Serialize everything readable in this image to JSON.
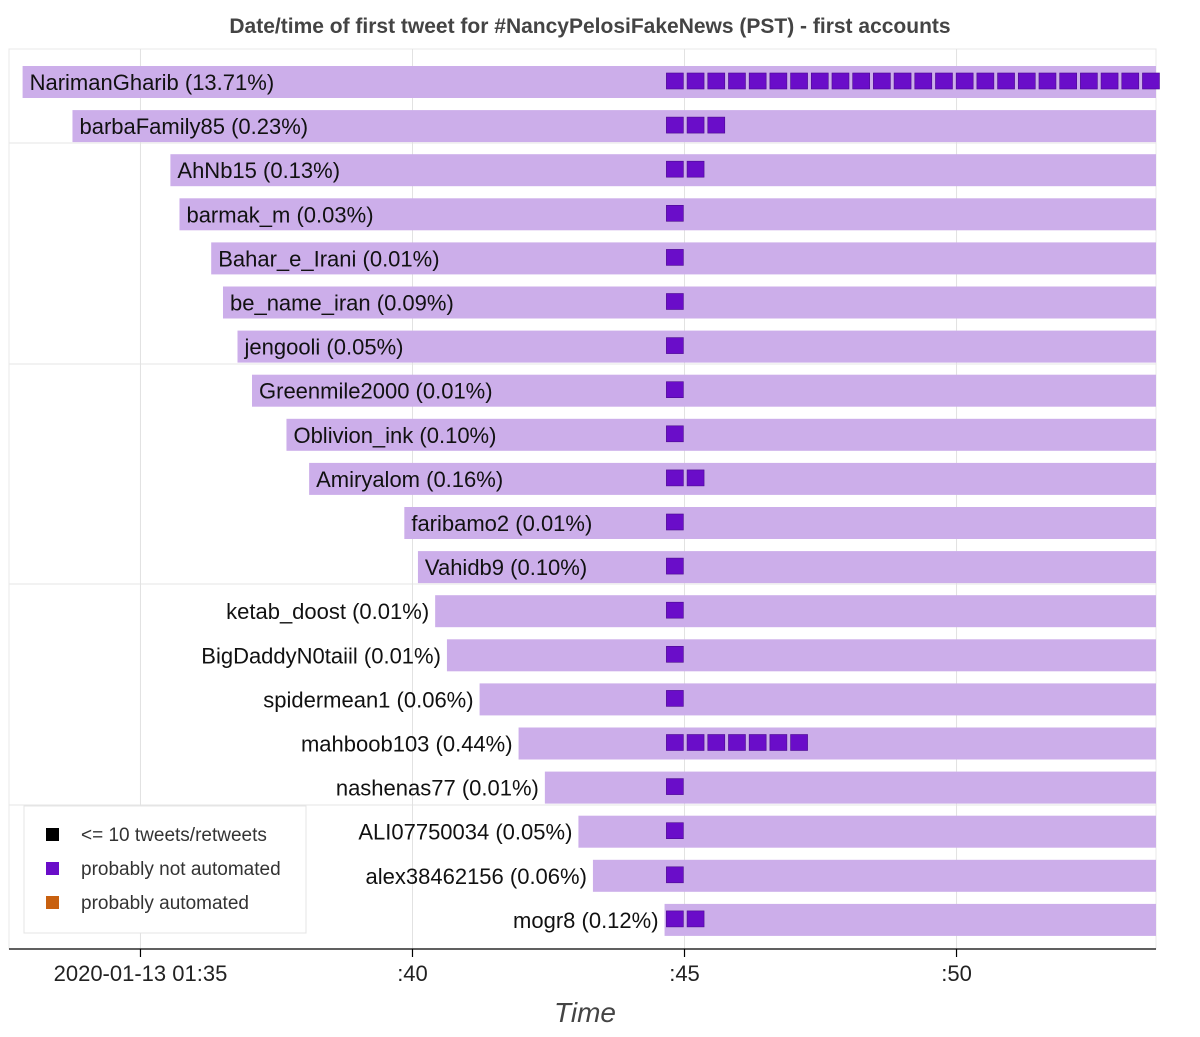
{
  "chart_data": {
    "type": "bar",
    "title": "Date/time of first tweet for #NancyPelosiFakeNews (PST) - first accounts",
    "xlabel": "Time",
    "ylabel": "",
    "x_axis": {
      "type": "time",
      "range": [
        "2020-01-13 01:32:35",
        "2020-01-13 01:53:40"
      ],
      "ticks": [
        {
          "value": "2020-01-13 01:35:00",
          "label": "2020-01-13 01:35"
        },
        {
          "value": "2020-01-13 01:40:00",
          "label": ":40"
        },
        {
          "value": "2020-01-13 01:45:00",
          "label": ":45"
        },
        {
          "value": "2020-01-13 01:50:00",
          "label": ":50"
        }
      ]
    },
    "grid": true,
    "legend_position": "bottom-left",
    "legend": [
      {
        "label": "<= 10 tweets/retweets",
        "color": "#000000"
      },
      {
        "label": "probably not automated",
        "color": "#6a0dc9"
      },
      {
        "label": "probably automated",
        "color": "#c8600f"
      }
    ],
    "bar_color": "#ccaeea",
    "marker_color": "#6a0dc9",
    "marker_start": "2020-01-13 01:44:40",
    "series": [
      {
        "account": "NarimanGharib",
        "label": "NarimanGharib (13.71%)",
        "pct": 13.71,
        "first_tweet": "2020-01-13 01:32:50",
        "markers": 24
      },
      {
        "account": "barbaFamily85",
        "label": "barbaFamily85 (0.23%)",
        "pct": 0.23,
        "first_tweet": "2020-01-13 01:33:45",
        "markers": 3
      },
      {
        "account": "AhNb15",
        "label": "AhNb15 (0.13%)",
        "pct": 0.13,
        "first_tweet": "2020-01-13 01:35:33",
        "markers": 2
      },
      {
        "account": "barmak_m",
        "label": "barmak_m (0.03%)",
        "pct": 0.03,
        "first_tweet": "2020-01-13 01:35:43",
        "markers": 1
      },
      {
        "account": "Bahar_e_Irani",
        "label": "Bahar_e_Irani (0.01%)",
        "pct": 0.01,
        "first_tweet": "2020-01-13 01:36:18",
        "markers": 1
      },
      {
        "account": "be_name_iran",
        "label": "be_name_iran (0.09%)",
        "pct": 0.09,
        "first_tweet": "2020-01-13 01:36:31",
        "markers": 1
      },
      {
        "account": "jengooli",
        "label": "jengooli (0.05%)",
        "pct": 0.05,
        "first_tweet": "2020-01-13 01:36:47",
        "markers": 1
      },
      {
        "account": "Greenmile2000",
        "label": "Greenmile2000 (0.01%)",
        "pct": 0.01,
        "first_tweet": "2020-01-13 01:37:03",
        "markers": 1
      },
      {
        "account": "Oblivion_ink",
        "label": "Oblivion_ink (0.10%)",
        "pct": 0.1,
        "first_tweet": "2020-01-13 01:37:41",
        "markers": 1
      },
      {
        "account": "Amiryalom",
        "label": "Amiryalom (0.16%)",
        "pct": 0.16,
        "first_tweet": "2020-01-13 01:38:06",
        "markers": 2
      },
      {
        "account": "faribamo2",
        "label": "faribamo2 (0.01%)",
        "pct": 0.01,
        "first_tweet": "2020-01-13 01:39:51",
        "markers": 1
      },
      {
        "account": "Vahidb9",
        "label": "Vahidb9 (0.10%)",
        "pct": 0.1,
        "first_tweet": "2020-01-13 01:40:06",
        "markers": 1
      },
      {
        "account": "ketab_doost",
        "label": "ketab_doost (0.01%)",
        "pct": 0.01,
        "first_tweet": "2020-01-13 01:40:25",
        "markers": 1
      },
      {
        "account": "BigDaddyN0taiil",
        "label": "BigDaddyN0taiil (0.01%)",
        "pct": 0.01,
        "first_tweet": "2020-01-13 01:40:38",
        "markers": 1
      },
      {
        "account": "spidermean1",
        "label": "spidermean1 (0.06%)",
        "pct": 0.06,
        "first_tweet": "2020-01-13 01:41:14",
        "markers": 1
      },
      {
        "account": "mahboob103",
        "label": "mahboob103 (0.44%)",
        "pct": 0.44,
        "first_tweet": "2020-01-13 01:41:57",
        "markers": 7
      },
      {
        "account": "nashenas77",
        "label": "nashenas77 (0.01%)",
        "pct": 0.01,
        "first_tweet": "2020-01-13 01:42:26",
        "markers": 1
      },
      {
        "account": "ALI07750034",
        "label": "ALI07750034 (0.05%)",
        "pct": 0.05,
        "first_tweet": "2020-01-13 01:43:03",
        "markers": 1
      },
      {
        "account": "alex38462156",
        "label": "alex38462156 (0.06%)",
        "pct": 0.06,
        "first_tweet": "2020-01-13 01:43:19",
        "markers": 1
      },
      {
        "account": "mogr8",
        "label": "mogr8 (0.12%)",
        "pct": 0.12,
        "first_tweet": "2020-01-13 01:44:38",
        "markers": 2
      }
    ]
  }
}
